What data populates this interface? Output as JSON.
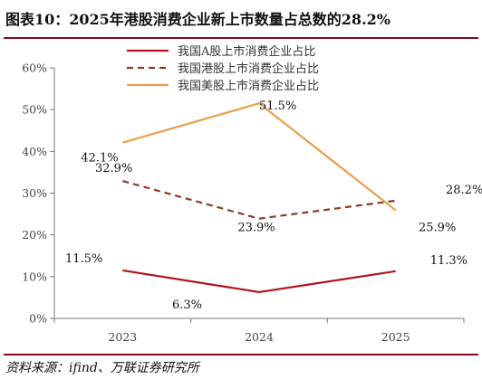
{
  "header": {
    "title": "图表10：2025年港股消费企业新上市数量占总数的28.2%",
    "source": "资料来源：ifind、万联证券研究所"
  },
  "chart_data": {
    "type": "line",
    "categories": [
      "2023",
      "2024",
      "2025"
    ],
    "ylim": [
      0,
      60
    ],
    "yticks": [
      0,
      10,
      20,
      30,
      40,
      50,
      60
    ],
    "ytick_labels": [
      "0%",
      "10%",
      "20%",
      "30%",
      "40%",
      "50%",
      "60%"
    ],
    "legend_position": "top-center",
    "series": [
      {
        "name": "我国A股上市消费企业占比",
        "values": [
          11.5,
          6.3,
          11.3
        ],
        "labels": [
          "11.5%",
          "6.3%",
          "11.3%"
        ],
        "color": "#b5121b",
        "dash": "solid"
      },
      {
        "name": "我国港股上市消费企业占比",
        "values": [
          32.9,
          23.9,
          28.2
        ],
        "labels": [
          "32.9%",
          "23.9%",
          "28.2%"
        ],
        "color": "#8b3a2a",
        "dash": "dashed"
      },
      {
        "name": "我国美股上市消费企业占比",
        "values": [
          42.1,
          51.5,
          25.9
        ],
        "labels": [
          "42.1%",
          "51.5%",
          "25.9%"
        ],
        "color": "#e8a04a",
        "dash": "solid"
      }
    ]
  }
}
